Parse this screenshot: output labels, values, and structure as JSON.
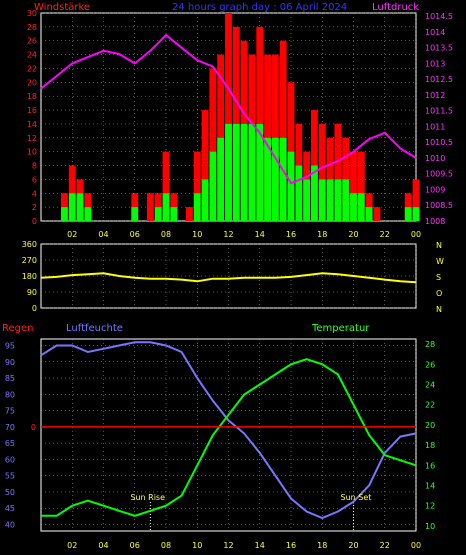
{
  "header": {
    "title": "24 hours graph day : 06 April 2024",
    "left_label": "Windstärke",
    "right_label": "Luftdruck"
  },
  "lower_labels": {
    "regen": "Regen",
    "luftfeuchte": "Luftfeuchte",
    "temperatur": "Temperatur",
    "sun_rise": "Sun Rise",
    "sun_set": "Sun Set"
  },
  "colors": {
    "wind": "#ff0000",
    "gust": "#00ff00",
    "pressure": "#ff00ff",
    "direction": "#ffff00",
    "humidity": "#7777ff",
    "temperature": "#00ff00",
    "rain": "#ff0000",
    "grid": "#aaaaaa"
  },
  "chart_data": [
    {
      "type": "bar",
      "name": "wind-chart",
      "x_ticks": [
        "02",
        "04",
        "06",
        "08",
        "10",
        "12",
        "14",
        "16",
        "18",
        "20",
        "22",
        "00"
      ],
      "y_left_ticks": [
        "0",
        "2",
        "4",
        "6",
        "8",
        "10",
        "12",
        "14",
        "16",
        "18",
        "20",
        "22",
        "24",
        "26",
        "28",
        "30"
      ],
      "y_left_range": [
        0,
        30
      ],
      "y_right_ticks": [
        "1008",
        "1008.5",
        "1009",
        "1009.5",
        "1010",
        "1010.5",
        "1011",
        "1011.5",
        "1012",
        "1012.5",
        "1013",
        "1013.5",
        "1014",
        "1014.5"
      ],
      "y_right_range": [
        1008,
        1014.6
      ],
      "hours": [
        0,
        0.5,
        1,
        1.5,
        2,
        2.5,
        3,
        3.5,
        4,
        4.5,
        5,
        5.5,
        6,
        6.5,
        7,
        7.5,
        8,
        8.5,
        9,
        9.5,
        10,
        10.5,
        11,
        11.5,
        12,
        12.5,
        13,
        13.5,
        14,
        14.5,
        15,
        15.5,
        16,
        16.5,
        17,
        17.5,
        18,
        18.5,
        19,
        19.5,
        20,
        20.5,
        21,
        21.5,
        22,
        22.5,
        23,
        23.5,
        24
      ],
      "wind_speed": [
        0,
        0,
        0,
        2,
        4,
        4,
        2,
        0,
        0,
        0,
        0,
        0,
        2,
        0,
        0,
        2,
        4,
        2,
        0,
        0,
        4,
        6,
        10,
        12,
        14,
        14,
        14,
        14,
        14,
        12,
        12,
        12,
        10,
        8,
        6,
        8,
        6,
        6,
        6,
        6,
        4,
        4,
        2,
        0,
        0,
        0,
        0,
        2,
        2
      ],
      "wind_gust": [
        0,
        0,
        0,
        4,
        8,
        6,
        4,
        0,
        0,
        0,
        0,
        0,
        4,
        0,
        4,
        4,
        10,
        4,
        0,
        2,
        10,
        16,
        22,
        24,
        30,
        28,
        26,
        24,
        28,
        24,
        24,
        26,
        20,
        14,
        10,
        16,
        14,
        12,
        14,
        12,
        10,
        10,
        4,
        2,
        0,
        0,
        0,
        4,
        6
      ],
      "pressure_hours": [
        0,
        1,
        2,
        3,
        4,
        5,
        6,
        7,
        8,
        9,
        10,
        11,
        12,
        13,
        14,
        15,
        16,
        17,
        18,
        19,
        20,
        21,
        22,
        23,
        24
      ],
      "pressure": [
        1012.2,
        1012.6,
        1013.0,
        1013.2,
        1013.4,
        1013.3,
        1013.0,
        1013.4,
        1013.9,
        1013.5,
        1013.1,
        1012.9,
        1012.2,
        1011.4,
        1010.8,
        1010.0,
        1009.2,
        1009.4,
        1009.7,
        1009.9,
        1010.2,
        1010.6,
        1010.8,
        1010.3,
        1010.0
      ]
    },
    {
      "type": "line",
      "name": "wind-direction-chart",
      "x_ticks": [
        "02",
        "04",
        "06",
        "08",
        "10",
        "12",
        "14",
        "16",
        "18",
        "20",
        "22",
        "00"
      ],
      "y_left_ticks": [
        "0",
        "90",
        "180",
        "270",
        "360"
      ],
      "y_left_range": [
        0,
        360
      ],
      "y_right_ticks": [
        "N",
        "W",
        "S",
        "O",
        "N"
      ],
      "hours": [
        0,
        1,
        2,
        3,
        4,
        5,
        6,
        7,
        8,
        9,
        10,
        11,
        12,
        13,
        14,
        15,
        16,
        17,
        18,
        19,
        20,
        21,
        22,
        23,
        24
      ],
      "direction": [
        170,
        175,
        185,
        190,
        195,
        180,
        170,
        165,
        165,
        160,
        150,
        165,
        165,
        170,
        170,
        170,
        175,
        185,
        195,
        190,
        180,
        170,
        160,
        150,
        145
      ]
    },
    {
      "type": "line",
      "name": "humidity-temperature-chart",
      "x_ticks": [
        "02",
        "04",
        "06",
        "08",
        "10",
        "12",
        "14",
        "16",
        "18",
        "20",
        "22",
        "00"
      ],
      "y_left_ticks": [
        "40",
        "45",
        "50",
        "55",
        "60",
        "65",
        "70",
        "75",
        "80",
        "85",
        "90",
        "95"
      ],
      "y_left_range": [
        38,
        97
      ],
      "y_right_ticks": [
        "10",
        "12",
        "14",
        "16",
        "18",
        "20",
        "22",
        "24",
        "26",
        "28"
      ],
      "y_right_range": [
        9.5,
        28.5
      ],
      "rain_line_value": 70,
      "sun_rise_hour": 7,
      "sun_set_hour": 20,
      "hours": [
        0,
        1,
        2,
        3,
        4,
        5,
        6,
        7,
        8,
        9,
        10,
        11,
        12,
        13,
        14,
        15,
        16,
        17,
        18,
        19,
        20,
        21,
        22,
        23,
        24
      ],
      "humidity": [
        92,
        95,
        95,
        93,
        94,
        95,
        96,
        96,
        95,
        93,
        85,
        78,
        72,
        68,
        62,
        55,
        48,
        44,
        42,
        44,
        47,
        52,
        62,
        67,
        68
      ],
      "temperature": [
        11,
        11,
        12,
        12.5,
        12,
        11.5,
        11,
        11.5,
        12,
        13,
        16,
        19,
        21,
        23,
        24,
        25,
        26,
        26.5,
        26,
        25,
        22,
        19,
        17,
        16.5,
        16
      ]
    }
  ]
}
